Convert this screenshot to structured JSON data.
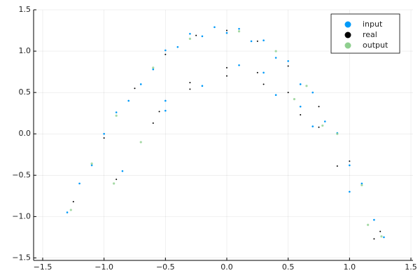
{
  "chart_data": {
    "type": "scatter",
    "xlim": [
      -1.574,
      1.517
    ],
    "ylim": [
      -1.53,
      1.5
    ],
    "xticks": [
      {
        "value": -1.5,
        "label": "−1.5"
      },
      {
        "value": -1,
        "label": "−1.0"
      },
      {
        "value": -0.5,
        "label": "−0.5"
      },
      {
        "value": 0,
        "label": "0.0"
      },
      {
        "value": 0.5,
        "label": "0.5"
      },
      {
        "value": 1,
        "label": "1.0"
      },
      {
        "value": 1.5,
        "label": "1.5"
      }
    ],
    "yticks": [
      {
        "value": -1.5,
        "label": "−1.5"
      },
      {
        "value": -1,
        "label": "−1.0"
      },
      {
        "value": -0.5,
        "label": "−0.5"
      },
      {
        "value": 0,
        "label": "0.0"
      },
      {
        "value": 0.5,
        "label": "0.5"
      },
      {
        "value": 1,
        "label": "1.0"
      },
      {
        "value": 1.5,
        "label": "1.5"
      }
    ],
    "grid": true,
    "legend": "top-right",
    "series": [
      {
        "name": "input",
        "color": "#009af9",
        "x": [
          -1.3,
          -1.2,
          -1.1,
          -1.0,
          -0.9,
          -0.8,
          -0.7,
          -0.6,
          -0.5,
          -0.4,
          -0.3,
          -0.2,
          -0.1,
          0,
          0.1,
          0.2,
          0.3,
          0.4,
          0.5,
          0.6,
          0.7,
          0.8,
          0.9,
          1.0,
          1.1,
          1.2,
          1.28,
          -0.85,
          -0.5,
          -0.2,
          0.1,
          0.4,
          0.7,
          1.0,
          -0.5,
          0.3,
          0.6
        ],
        "values": [
          -0.95,
          -0.6,
          -0.38,
          0.0,
          0.26,
          0.4,
          0.6,
          0.78,
          1.01,
          1.05,
          1.21,
          1.18,
          1.29,
          1.22,
          1.27,
          1.12,
          1.13,
          0.92,
          0.88,
          0.6,
          0.5,
          0.15,
          0.01,
          -0.38,
          -0.6,
          -1.04,
          -1.25,
          -0.45,
          0.4,
          0.58,
          0.83,
          0.47,
          0.09,
          -0.7,
          0.28,
          0.74,
          0.33
        ]
      },
      {
        "name": "real",
        "color": "#000000",
        "x": [
          -1.25,
          -1.0,
          -0.75,
          -0.5,
          -0.25,
          0,
          0.25,
          0.5,
          0.75,
          1.0,
          1.25,
          -0.55,
          -0.3,
          0,
          0.25,
          0.5,
          0.75,
          -0.9,
          -0.6,
          -0.3,
          0,
          0.3,
          0.6,
          0.9,
          1.2
        ],
        "values": [
          -0.82,
          -0.05,
          0.55,
          0.96,
          1.19,
          1.25,
          1.12,
          0.82,
          0.33,
          -0.33,
          -1.18,
          0.27,
          0.62,
          0.8,
          0.74,
          0.5,
          0.08,
          -0.55,
          0.13,
          0.54,
          0.7,
          0.6,
          0.23,
          -0.39,
          -1.27
        ]
      },
      {
        "name": "output",
        "color": "#8fcf8f",
        "x": [
          -1.27,
          -1.1,
          -0.9,
          -0.6,
          -0.3,
          0.1,
          0.4,
          0.65,
          0.9,
          1.1,
          1.26,
          -0.92,
          -0.7,
          0.55,
          0.78,
          1.15
        ],
        "values": [
          -0.92,
          -0.36,
          0.22,
          0.8,
          1.15,
          1.24,
          1.0,
          0.58,
          0.0,
          -0.62,
          -1.24,
          -0.6,
          -0.1,
          0.42,
          0.1,
          -1.1
        ]
      }
    ]
  }
}
